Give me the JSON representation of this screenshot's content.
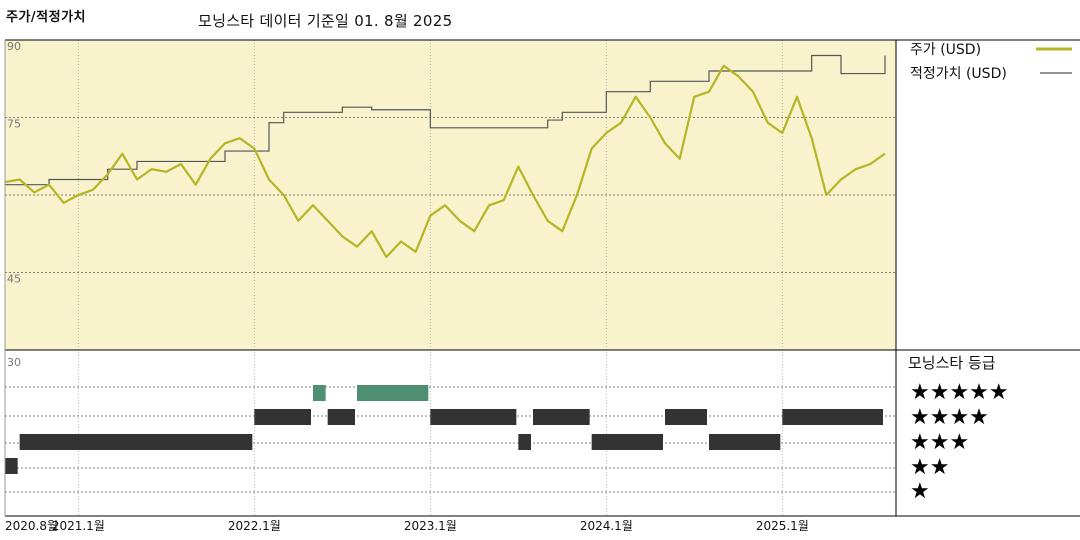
{
  "header": {
    "title": "주가/적정가치",
    "subtitle": "모닝스타 데이터 기준일 01. 8월 2025"
  },
  "colors": {
    "price": "#b5b526",
    "fair_value": "#555555",
    "plot_bg": "#f8f3cc",
    "rating_dark": "#333333",
    "rating_green": "#4f8f74"
  },
  "chart_data": [
    {
      "type": "line",
      "title": "주가/적정가치",
      "y_ticks": [
        90,
        75,
        45
      ],
      "ylim": [
        30,
        90
      ],
      "x_ticks": [
        "2020.8월",
        "2021.1월",
        "2022.1월",
        "2023.1월",
        "2024.1월",
        "2025.1월"
      ],
      "x_tick_dates": [
        "2020-08",
        "2021-01",
        "2022-01",
        "2023-01",
        "2024-01",
        "2025-01"
      ],
      "x_range": [
        "2020-08",
        "2025-08"
      ],
      "legend_position": "top-right",
      "series": [
        {
          "name": "주가 (USD)",
          "points": [
            [
              "2020-08",
              62.5
            ],
            [
              "2020-09",
              63.0
            ],
            [
              "2020-10",
              60.5
            ],
            [
              "2020-11",
              62.0
            ],
            [
              "2020-12",
              58.5
            ],
            [
              "2021-01",
              60.0
            ],
            [
              "2021-02",
              61.0
            ],
            [
              "2021-03",
              64.0
            ],
            [
              "2021-04",
              68.0
            ],
            [
              "2021-05",
              63.0
            ],
            [
              "2021-06",
              65.0
            ],
            [
              "2021-07",
              64.5
            ],
            [
              "2021-08",
              66.0
            ],
            [
              "2021-09",
              62.0
            ],
            [
              "2021-10",
              67.0
            ],
            [
              "2021-11",
              70.0
            ],
            [
              "2021-12",
              71.0
            ],
            [
              "2022-01",
              69.0
            ],
            [
              "2022-02",
              63.0
            ],
            [
              "2022-03",
              60.0
            ],
            [
              "2022-04",
              55.0
            ],
            [
              "2022-05",
              58.0
            ],
            [
              "2022-06",
              55.0
            ],
            [
              "2022-07",
              52.0
            ],
            [
              "2022-08",
              50.0
            ],
            [
              "2022-09",
              53.0
            ],
            [
              "2022-10",
              48.0
            ],
            [
              "2022-11",
              51.0
            ],
            [
              "2022-12",
              49.0
            ],
            [
              "2023-01",
              56.0
            ],
            [
              "2023-02",
              58.0
            ],
            [
              "2023-03",
              55.0
            ],
            [
              "2023-04",
              53.0
            ],
            [
              "2023-05",
              58.0
            ],
            [
              "2023-06",
              59.0
            ],
            [
              "2023-07",
              65.5
            ],
            [
              "2023-08",
              60.0
            ],
            [
              "2023-09",
              55.0
            ],
            [
              "2023-10",
              53.0
            ],
            [
              "2023-11",
              60.0
            ],
            [
              "2023-12",
              69.0
            ],
            [
              "2024-01",
              72.0
            ],
            [
              "2024-02",
              74.0
            ],
            [
              "2024-03",
              79.0
            ],
            [
              "2024-04",
              75.0
            ],
            [
              "2024-05",
              70.0
            ],
            [
              "2024-06",
              67.0
            ],
            [
              "2024-07",
              79.0
            ],
            [
              "2024-08",
              80.0
            ],
            [
              "2024-09",
              85.0
            ],
            [
              "2024-10",
              83.0
            ],
            [
              "2024-11",
              80.0
            ],
            [
              "2024-12",
              74.0
            ],
            [
              "2025-01",
              72.0
            ],
            [
              "2025-02",
              79.0
            ],
            [
              "2025-03",
              71.0
            ],
            [
              "2025-04",
              60.0
            ],
            [
              "2025-05",
              63.0
            ],
            [
              "2025-06",
              65.0
            ],
            [
              "2025-07",
              66.0
            ],
            [
              "2025-08",
              68.0
            ]
          ]
        },
        {
          "name": "적정가치 (USD)",
          "step": true,
          "points": [
            [
              "2020-08",
              62.0
            ],
            [
              "2020-11",
              63.0
            ],
            [
              "2021-03",
              65.0
            ],
            [
              "2021-05",
              66.5
            ],
            [
              "2021-11",
              68.5
            ],
            [
              "2022-02",
              74.0
            ],
            [
              "2022-03",
              76.0
            ],
            [
              "2022-07",
              77.0
            ],
            [
              "2022-09",
              76.5
            ],
            [
              "2023-01",
              73.0
            ],
            [
              "2023-09",
              74.5
            ],
            [
              "2023-10",
              76.0
            ],
            [
              "2024-01",
              80.0
            ],
            [
              "2024-04",
              82.0
            ],
            [
              "2024-08",
              84.0
            ],
            [
              "2025-03",
              87.0
            ],
            [
              "2025-05",
              83.5
            ],
            [
              "2025-08",
              87.0
            ]
          ]
        }
      ]
    },
    {
      "type": "bar",
      "title": "모닝스타 등급",
      "y_tick": "30",
      "rating_labels": [
        "★★★★★",
        "★★★★",
        "★★★",
        "★★",
        "★"
      ],
      "ratings": [
        {
          "start": "2020-08",
          "end": "2020-09",
          "stars": 2
        },
        {
          "start": "2020-09",
          "end": "2022-01",
          "stars": 3
        },
        {
          "start": "2022-01",
          "end": "2022-05",
          "stars": 4
        },
        {
          "start": "2022-05",
          "end": "2022-06",
          "stars": 5
        },
        {
          "start": "2022-06",
          "end": "2022-08",
          "stars": 4
        },
        {
          "start": "2022-08",
          "end": "2023-01",
          "stars": 5
        },
        {
          "start": "2023-01",
          "end": "2023-07",
          "stars": 4
        },
        {
          "start": "2023-07",
          "end": "2023-08",
          "stars": 3
        },
        {
          "start": "2023-08",
          "end": "2023-12",
          "stars": 4
        },
        {
          "start": "2023-12",
          "end": "2024-05",
          "stars": 3
        },
        {
          "start": "2024-05",
          "end": "2024-08",
          "stars": 4
        },
        {
          "start": "2024-08",
          "end": "2025-01",
          "stars": 3
        },
        {
          "start": "2025-01",
          "end": "2025-08",
          "stars": 4
        }
      ]
    }
  ]
}
